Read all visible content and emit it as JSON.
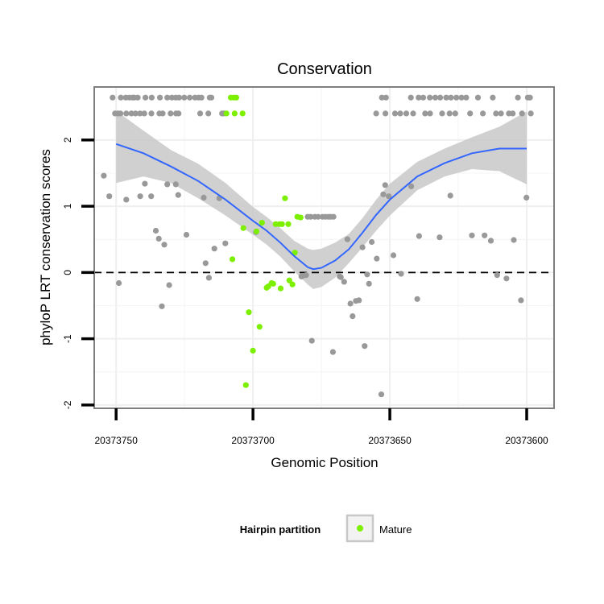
{
  "chart_data": {
    "type": "scatter",
    "title": "Conservation",
    "xlabel": "Genomic Position",
    "ylabel": "phyloP LRT conservation scores",
    "x_reversed": true,
    "xlim": [
      20373758,
      20373590
    ],
    "ylim": [
      -2.05,
      2.8
    ],
    "x_ticks": [
      20373750,
      20373700,
      20373650,
      20373600
    ],
    "x_tick_labels": [
      "20373750",
      "20373700",
      "20373650",
      "20373600"
    ],
    "y_ticks": [
      -2,
      -1,
      0,
      1,
      2
    ],
    "y_tick_labels": [
      "-2",
      "-1",
      "0",
      "1",
      "2"
    ],
    "reference_line": {
      "y": 0,
      "style": "dashed"
    },
    "legend": {
      "title": "Hairpin partition",
      "position": "bottom",
      "entries": [
        {
          "label": "Mature",
          "color": "#7cf000"
        }
      ]
    },
    "colors": {
      "other": "#999999",
      "mature": "#7cf000",
      "smooth_line": "#3366ff",
      "ribbon": "#c8c8c8"
    },
    "series": [
      {
        "name": "Other",
        "points": [
          [
            20373751.3,
            2.64
          ],
          [
            20373750.4,
            2.4
          ],
          [
            20373749.4,
            2.4
          ],
          [
            20373748.4,
            2.4
          ],
          [
            20373748.3,
            2.64
          ],
          [
            20373746.5,
            2.64
          ],
          [
            20373746.3,
            2.4
          ],
          [
            20373745.2,
            2.64
          ],
          [
            20373744.4,
            2.4
          ],
          [
            20373744.0,
            2.64
          ],
          [
            20373743.4,
            2.64
          ],
          [
            20373742.9,
            2.4
          ],
          [
            20373742.1,
            2.64
          ],
          [
            20373741.3,
            2.4
          ],
          [
            20373739.7,
            2.4
          ],
          [
            20373739.3,
            2.64
          ],
          [
            20373737.1,
            2.4
          ],
          [
            20373737.0,
            2.64
          ],
          [
            20373734.2,
            2.4
          ],
          [
            20373734.0,
            2.64
          ],
          [
            20373733.0,
            2.4
          ],
          [
            20373731.3,
            2.64
          ],
          [
            20373730.1,
            2.4
          ],
          [
            20373729.6,
            2.64
          ],
          [
            20373728.1,
            2.4
          ],
          [
            20373728.2,
            2.64
          ],
          [
            20373727.2,
            2.4
          ],
          [
            20373727.0,
            2.64
          ],
          [
            20373725.1,
            2.64
          ],
          [
            20373723.1,
            2.64
          ],
          [
            20373721.2,
            2.64
          ],
          [
            20373719.9,
            2.64
          ],
          [
            20373719.3,
            2.4
          ],
          [
            20373718.8,
            2.64
          ],
          [
            20373716.3,
            2.4
          ],
          [
            20373715.8,
            2.64
          ],
          [
            20373715.2,
            2.64
          ],
          [
            20373711.3,
            2.4
          ],
          [
            20373710.6,
            2.4
          ],
          [
            20373652.9,
            2.64
          ],
          [
            20373651.4,
            2.64
          ],
          [
            20373655.0,
            2.4
          ],
          [
            20373651.6,
            2.4
          ],
          [
            20373648.1,
            2.4
          ],
          [
            20373646.2,
            2.4
          ],
          [
            20373644.0,
            2.4
          ],
          [
            20373642.3,
            2.64
          ],
          [
            20373641.5,
            2.4
          ],
          [
            20373639.5,
            2.64
          ],
          [
            20373637.8,
            2.64
          ],
          [
            20373637.1,
            2.4
          ],
          [
            20373635.4,
            2.64
          ],
          [
            20373635.3,
            2.4
          ],
          [
            20373633.4,
            2.64
          ],
          [
            20373631.6,
            2.64
          ],
          [
            20373630.9,
            2.4
          ],
          [
            20373629.4,
            2.64
          ],
          [
            20373628.2,
            2.4
          ],
          [
            20373627.7,
            2.64
          ],
          [
            20373626.1,
            2.4
          ],
          [
            20373625.7,
            2.64
          ],
          [
            20373623.8,
            2.64
          ],
          [
            20373622.1,
            2.64
          ],
          [
            20373620.7,
            2.4
          ],
          [
            20373617.8,
            2.64
          ],
          [
            20373616.0,
            2.4
          ],
          [
            20373612.4,
            2.64
          ],
          [
            20373611.2,
            2.4
          ],
          [
            20373609.4,
            2.4
          ],
          [
            20373606.5,
            2.4
          ],
          [
            20373605.1,
            2.4
          ],
          [
            20373603.2,
            2.64
          ],
          [
            20373601.7,
            2.4
          ],
          [
            20373599.6,
            2.64
          ],
          [
            20373598.8,
            2.64
          ],
          [
            20373598.5,
            2.4
          ],
          [
            20373754.5,
            1.46
          ],
          [
            20373752.5,
            1.15
          ],
          [
            20373749.0,
            -0.16
          ],
          [
            20373746.3,
            1.1
          ],
          [
            20373741.2,
            1.15
          ],
          [
            20373739.5,
            1.34
          ],
          [
            20373737.2,
            1.15
          ],
          [
            20373735.5,
            0.63
          ],
          [
            20373734.4,
            0.51
          ],
          [
            20373733.3,
            -0.51
          ],
          [
            20373732.4,
            0.42
          ],
          [
            20373731.3,
            1.33
          ],
          [
            20373730.6,
            -0.19
          ],
          [
            20373728.2,
            1.33
          ],
          [
            20373727.3,
            1.17
          ],
          [
            20373724.3,
            0.57
          ],
          [
            20373718.0,
            1.13
          ],
          [
            20373717.3,
            0.14
          ],
          [
            20373716.1,
            -0.08
          ],
          [
            20373714.1,
            0.36
          ],
          [
            20373712.3,
            1.12
          ],
          [
            20373710.1,
            0.44
          ],
          [
            20373698.9,
            0.61
          ],
          [
            20373682.3,
            -0.06
          ],
          [
            20373681.8,
            -0.05
          ],
          [
            20373680.6,
            -0.04
          ],
          [
            20373680.0,
            0.84
          ],
          [
            20373678.9,
            0.84
          ],
          [
            20373677.4,
            0.84
          ],
          [
            20373676.2,
            0.84
          ],
          [
            20373674.6,
            0.84
          ],
          [
            20373673.5,
            0.84
          ],
          [
            20373672.4,
            0.84
          ],
          [
            20373671.6,
            0.84
          ],
          [
            20373670.6,
            0.84
          ],
          [
            20373678.5,
            -1.03
          ],
          [
            20373670.8,
            -1.2
          ],
          [
            20373668.3,
            -0.06
          ],
          [
            20373667.9,
            -0.07
          ],
          [
            20373666.7,
            -0.14
          ],
          [
            20373665.5,
            0.5
          ],
          [
            20373664.4,
            -0.47
          ],
          [
            20373663.6,
            -0.66
          ],
          [
            20373662.4,
            -0.43
          ],
          [
            20373661.3,
            -0.42
          ],
          [
            20373660.0,
            0.38
          ],
          [
            20373659.2,
            -1.11
          ],
          [
            20373658.3,
            -0.03
          ],
          [
            20373657.6,
            -0.17
          ],
          [
            20373656.6,
            0.46
          ],
          [
            20373654.8,
            0.21
          ],
          [
            20373653.1,
            -1.84
          ],
          [
            20373652.4,
            1.18
          ],
          [
            20373651.7,
            1.32
          ],
          [
            20373650.4,
            1.15
          ],
          [
            20373648.7,
            0.26
          ],
          [
            20373645.9,
            -0.02
          ],
          [
            20373642.2,
            1.3
          ],
          [
            20373640.0,
            -0.4
          ],
          [
            20373639.3,
            0.55
          ],
          [
            20373631.8,
            0.53
          ],
          [
            20373627.9,
            1.16
          ],
          [
            20373620.0,
            0.56
          ],
          [
            20373615.4,
            0.56
          ],
          [
            20373613.1,
            0.48
          ],
          [
            20373610.8,
            -0.04
          ],
          [
            20373607.4,
            -0.09
          ],
          [
            20373604.7,
            0.49
          ],
          [
            20373602.1,
            -0.42
          ],
          [
            20373600.1,
            1.13
          ]
        ]
      },
      {
        "name": "Mature",
        "points": [
          [
            20373709.7,
            2.4
          ],
          [
            20373708.1,
            2.64
          ],
          [
            20373707.0,
            2.64
          ],
          [
            20373706.1,
            2.64
          ],
          [
            20373706.7,
            2.4
          ],
          [
            20373703.8,
            2.4
          ],
          [
            20373707.5,
            0.2
          ],
          [
            20373703.5,
            0.67
          ],
          [
            20373702.6,
            -1.7
          ],
          [
            20373701.5,
            -0.6
          ],
          [
            20373700.0,
            -1.18
          ],
          [
            20373698.7,
            0.62
          ],
          [
            20373697.6,
            -0.82
          ],
          [
            20373696.7,
            0.75
          ],
          [
            20373695.0,
            -0.23
          ],
          [
            20373694.4,
            -0.21
          ],
          [
            20373693.2,
            -0.16
          ],
          [
            20373692.6,
            -0.17
          ],
          [
            20373691.7,
            0.73
          ],
          [
            20373690.3,
            0.73
          ],
          [
            20373689.9,
            -0.24
          ],
          [
            20373689.4,
            0.73
          ],
          [
            20373688.3,
            1.12
          ],
          [
            20373687.1,
            0.73
          ],
          [
            20373686.7,
            -0.12
          ],
          [
            20373685.6,
            -0.18
          ],
          [
            20373684.7,
            0.3
          ],
          [
            20373683.8,
            0.84
          ],
          [
            20373682.6,
            0.83
          ]
        ]
      }
    ],
    "smooth_fit": {
      "x": [
        20373750,
        20373740,
        20373730,
        20373720,
        20373710,
        20373700,
        20373695,
        20373690,
        20373685,
        20373680,
        20373678,
        20373675,
        20373670,
        20373665,
        20373660,
        20373655,
        20373650,
        20373640,
        20373630,
        20373620,
        20373610,
        20373600
      ],
      "y": [
        1.94,
        1.8,
        1.6,
        1.38,
        1.1,
        0.78,
        0.63,
        0.45,
        0.25,
        0.08,
        0.05,
        0.07,
        0.18,
        0.35,
        0.6,
        0.87,
        1.1,
        1.45,
        1.65,
        1.8,
        1.87,
        1.87
      ],
      "lower": [
        1.35,
        1.45,
        1.35,
        1.12,
        0.86,
        0.57,
        0.42,
        0.24,
        0.02,
        -0.18,
        -0.25,
        -0.22,
        -0.08,
        0.14,
        0.38,
        0.63,
        0.86,
        1.24,
        1.45,
        1.56,
        1.53,
        1.33
      ],
      "upper": [
        2.44,
        2.14,
        1.85,
        1.64,
        1.35,
        0.99,
        0.84,
        0.67,
        0.48,
        0.36,
        0.34,
        0.36,
        0.45,
        0.58,
        0.82,
        1.1,
        1.34,
        1.67,
        1.87,
        2.04,
        2.2,
        2.43
      ]
    }
  }
}
